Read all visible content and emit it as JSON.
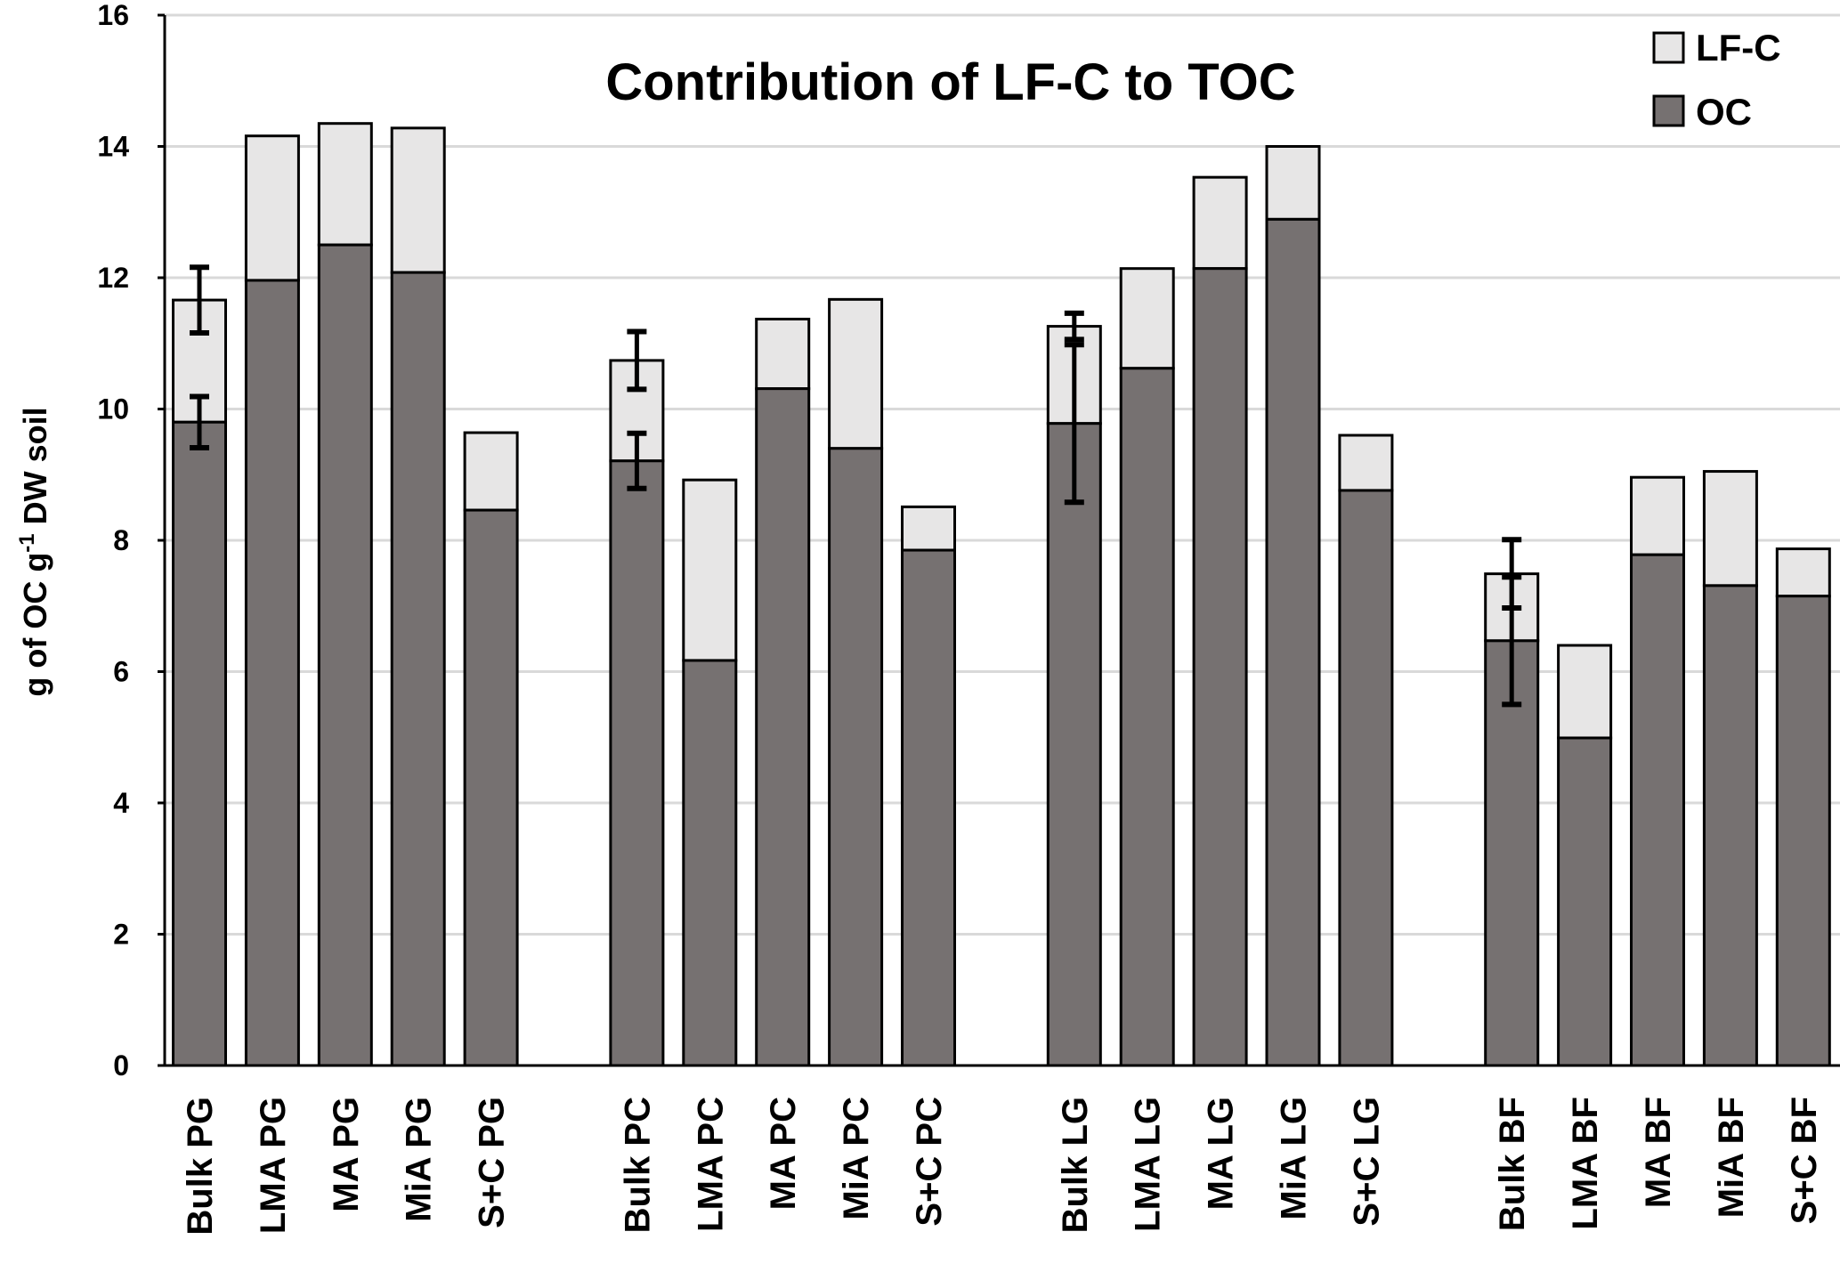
{
  "chart_data": {
    "type": "bar",
    "stacked": true,
    "title": "Contribution of LF-C to TOC",
    "xlabel": "",
    "ylabel": "g of OC g-1 DW soil",
    "ylabel_parts": {
      "main": "g of OC g",
      "sup": "-1",
      "tail": " DW soil"
    },
    "ylim": [
      0,
      16
    ],
    "yticks": [
      0,
      2,
      4,
      6,
      8,
      10,
      12,
      14,
      16
    ],
    "grid": true,
    "legend_position": "top-right",
    "colors": {
      "OC": "#767171",
      "LF-C": "#e7e6e6",
      "grid": "#d9d9d9",
      "axis": "#000000"
    },
    "legend": [
      {
        "name": "LF-C",
        "color": "#e7e6e6"
      },
      {
        "name": "OC",
        "color": "#767171"
      }
    ],
    "groups": [
      "PG",
      "PC",
      "LG",
      "BF"
    ],
    "categories": [
      "Bulk PG",
      "LMA PG",
      "MA  PG",
      "MiA  PG",
      "S+C PG",
      "Bulk PC",
      "LMA PC",
      "MA  PC",
      "MiA  PC",
      "S+C  PC",
      "Bulk LG",
      "LMA LG",
      "MA  LG",
      "MiA  LG",
      "S+C  LG",
      "Bulk BF",
      "LMA BF",
      "MA  BF",
      "MiA  BF",
      "S+C  BF"
    ],
    "series": [
      {
        "name": "OC",
        "values": [
          9.8,
          11.96,
          12.5,
          12.08,
          8.46,
          9.21,
          6.17,
          10.31,
          9.4,
          7.85,
          9.78,
          10.62,
          12.14,
          12.89,
          8.76,
          6.47,
          4.99,
          7.78,
          7.31,
          7.15
        ]
      },
      {
        "name": "LF-C",
        "values": [
          1.86,
          2.2,
          1.85,
          2.2,
          1.18,
          1.53,
          2.75,
          1.06,
          2.27,
          0.66,
          1.48,
          1.52,
          1.39,
          1.11,
          0.84,
          1.02,
          1.41,
          1.18,
          1.74,
          0.72
        ]
      }
    ],
    "totals": [
      11.66,
      14.16,
      14.35,
      14.28,
      9.64,
      10.74,
      8.92,
      11.37,
      11.67,
      8.51,
      11.26,
      12.14,
      13.53,
      14.0,
      9.6,
      7.49,
      6.4,
      8.96,
      9.05,
      7.87
    ],
    "error_bars": [
      {
        "category": "Bulk PG",
        "oc_err": 0.39,
        "total_err": 0.5
      },
      {
        "category": "Bulk PC",
        "oc_err": 0.42,
        "total_err": 0.44
      },
      {
        "category": "Bulk LG",
        "oc_err": 1.2,
        "total_err": 0.2
      },
      {
        "category": "Bulk BF",
        "oc_err": 0.97,
        "total_err": 0.52
      }
    ]
  }
}
